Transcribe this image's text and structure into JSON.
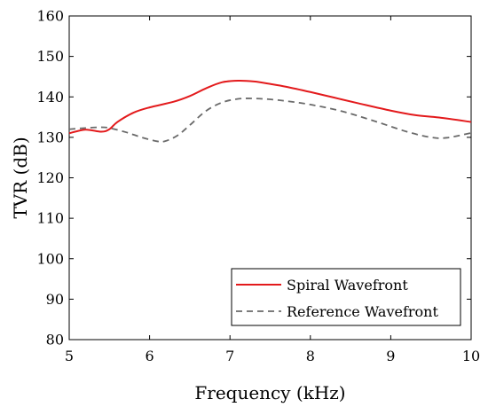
{
  "chart_data": {
    "type": "line",
    "xlabel": "Frequency (kHz)",
    "ylabel": "TVR (dB)",
    "xlim": [
      5,
      10
    ],
    "ylim": [
      80,
      160
    ],
    "xticks": [
      5,
      6,
      7,
      8,
      9,
      10
    ],
    "yticks": [
      80,
      90,
      100,
      110,
      120,
      130,
      140,
      150,
      160
    ],
    "grid": false,
    "legend_position": "bottom-right",
    "series": [
      {
        "name": "Spiral Wavefront",
        "color": "#e31a1c",
        "style": "solid",
        "x": [
          5.0,
          5.2,
          5.4,
          5.5,
          5.6,
          5.8,
          6.0,
          6.3,
          6.5,
          6.7,
          6.9,
          7.1,
          7.3,
          7.5,
          7.7,
          8.0,
          8.3,
          8.6,
          9.0,
          9.3,
          9.6,
          10.0
        ],
        "y": [
          131.0,
          131.9,
          131.4,
          132.0,
          133.8,
          136.1,
          137.4,
          138.8,
          140.2,
          142.1,
          143.6,
          144.0,
          143.8,
          143.2,
          142.5,
          141.2,
          139.8,
          138.4,
          136.6,
          135.5,
          134.9,
          133.8
        ]
      },
      {
        "name": "Reference Wavefront",
        "color": "#6a6a6a",
        "style": "dashed",
        "x": [
          5.0,
          5.2,
          5.4,
          5.5,
          5.7,
          5.9,
          6.1,
          6.2,
          6.35,
          6.5,
          6.7,
          6.9,
          7.1,
          7.3,
          7.6,
          8.0,
          8.4,
          8.8,
          9.2,
          9.5,
          9.7,
          10.0
        ],
        "y": [
          132.0,
          132.3,
          132.5,
          132.3,
          131.3,
          130.0,
          129.0,
          129.1,
          130.5,
          133.0,
          136.5,
          138.6,
          139.5,
          139.6,
          139.2,
          138.1,
          136.4,
          134.0,
          131.4,
          130.0,
          129.9,
          131.1
        ]
      }
    ]
  }
}
